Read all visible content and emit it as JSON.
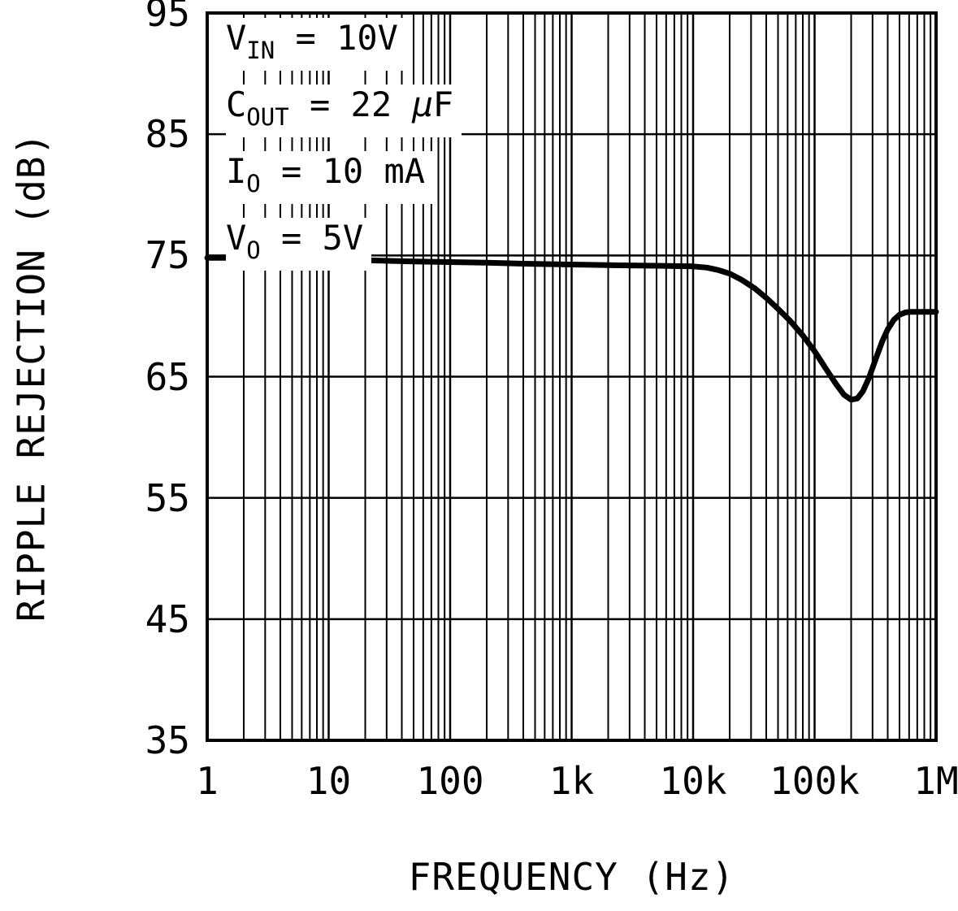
{
  "figure": {
    "background": "#ffffff",
    "line_color": "#000000"
  },
  "chart_data": {
    "type": "line",
    "title": "",
    "xlabel": "FREQUENCY (Hz)",
    "ylabel": "RIPPLE REJECTION (dB)",
    "x_scale": "log",
    "x_range_hz": [
      1,
      1000000
    ],
    "x_tick_labels": [
      "1",
      "10",
      "100",
      "1k",
      "10k",
      "100k",
      "1M"
    ],
    "y_range_db": [
      35,
      95
    ],
    "y_ticks": [
      35,
      45,
      55,
      65,
      75,
      85,
      95
    ],
    "grid": "major horizontals every 10 dB; log-spaced minor verticals every decade",
    "legend_position": "none",
    "annotations": [
      {
        "segments": [
          {
            "t": "V"
          },
          {
            "t": "IN",
            "sub": true
          },
          {
            "t": " = 10V"
          }
        ]
      },
      {
        "segments": [
          {
            "t": "C"
          },
          {
            "t": "OUT",
            "sub": true
          },
          {
            "t": " = 22 "
          },
          {
            "t": "μ",
            "italic": true
          },
          {
            "t": "F"
          }
        ]
      },
      {
        "segments": [
          {
            "t": "I"
          },
          {
            "t": "O",
            "sub": true
          },
          {
            "t": " = 10 mA"
          }
        ]
      },
      {
        "segments": [
          {
            "t": "V"
          },
          {
            "t": "O",
            "sub": true
          },
          {
            "t": " = 5V"
          }
        ]
      }
    ],
    "series": [
      {
        "name": "ripple-rejection",
        "points": [
          [
            1,
            74.8
          ],
          [
            1.5,
            74.8
          ],
          [
            2,
            74.8
          ],
          [
            3,
            74.75
          ],
          [
            5,
            74.7
          ],
          [
            7,
            74.7
          ],
          [
            10,
            74.65
          ],
          [
            20,
            74.6
          ],
          [
            50,
            74.5
          ],
          [
            100,
            74.45
          ],
          [
            200,
            74.4
          ],
          [
            500,
            74.3
          ],
          [
            1000,
            74.25
          ],
          [
            2000,
            74.2
          ],
          [
            5000,
            74.15
          ],
          [
            10000,
            74.1
          ],
          [
            13000,
            74.0
          ],
          [
            16000,
            73.8
          ],
          [
            20000,
            73.5
          ],
          [
            25000,
            73.0
          ],
          [
            32000,
            72.3
          ],
          [
            40000,
            71.5
          ],
          [
            50000,
            70.6
          ],
          [
            63000,
            69.6
          ],
          [
            80000,
            68.4
          ],
          [
            100000,
            67.1
          ],
          [
            125000,
            65.6
          ],
          [
            150000,
            64.4
          ],
          [
            175000,
            63.5
          ],
          [
            200000,
            63.1
          ],
          [
            225000,
            63.2
          ],
          [
            250000,
            63.8
          ],
          [
            280000,
            64.9
          ],
          [
            320000,
            66.5
          ],
          [
            360000,
            67.9
          ],
          [
            400000,
            68.9
          ],
          [
            450000,
            69.7
          ],
          [
            500000,
            70.1
          ],
          [
            560000,
            70.3
          ],
          [
            630000,
            70.35
          ],
          [
            700000,
            70.35
          ],
          [
            800000,
            70.35
          ],
          [
            1000000,
            70.35
          ]
        ]
      }
    ]
  }
}
